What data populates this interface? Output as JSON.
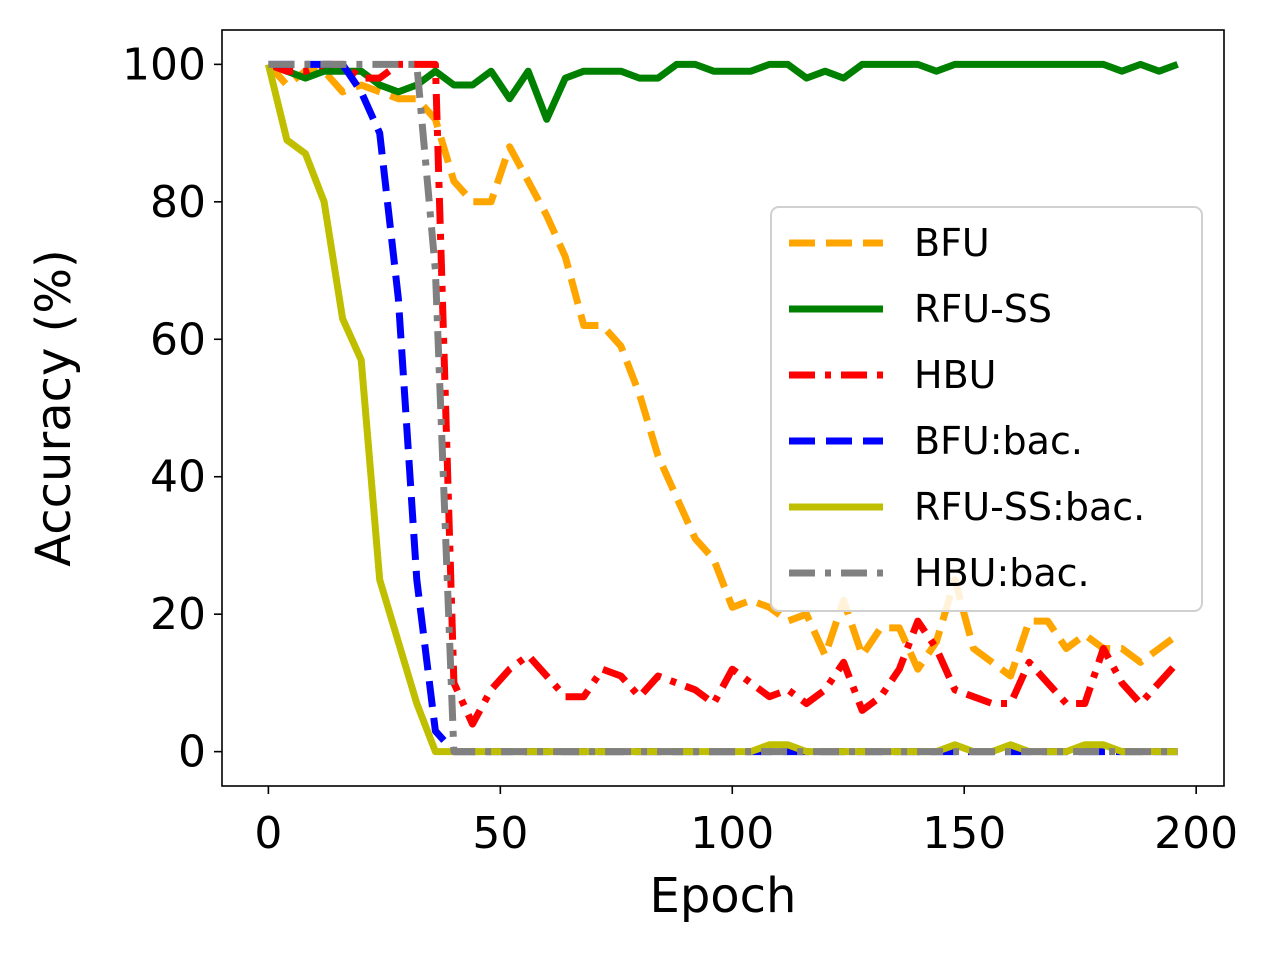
{
  "chart_data": {
    "type": "line",
    "title": "",
    "xlabel": "Epoch",
    "ylabel": "Accuracy (%)",
    "xlim": [
      -10,
      206
    ],
    "ylim": [
      -5,
      105
    ],
    "xticks": [
      0,
      50,
      100,
      150,
      200
    ],
    "yticks": [
      0,
      20,
      40,
      60,
      80,
      100
    ],
    "grid": false,
    "legend_position": "center-right",
    "x": [
      0,
      4,
      8,
      12,
      16,
      20,
      24,
      28,
      32,
      36,
      40,
      44,
      48,
      52,
      56,
      60,
      64,
      68,
      72,
      76,
      80,
      84,
      88,
      92,
      96,
      100,
      104,
      108,
      112,
      116,
      120,
      124,
      128,
      132,
      136,
      140,
      144,
      148,
      152,
      156,
      160,
      164,
      168,
      172,
      176,
      180,
      184,
      188,
      192,
      196
    ],
    "series": [
      {
        "name": "BFU",
        "color": "#ffa500",
        "dash": "dashed",
        "values": [
          100,
          97,
          99,
          99,
          96,
          97,
          96,
          95,
          95,
          92,
          83,
          80,
          80,
          88,
          83,
          78,
          72,
          62,
          62,
          59,
          52,
          43,
          37,
          31,
          28,
          21,
          22,
          21,
          19,
          20,
          14,
          22,
          14,
          18,
          18,
          12,
          16,
          25,
          15,
          13,
          11,
          19,
          19,
          15,
          17,
          15,
          15,
          13,
          15,
          17
        ]
      },
      {
        "name": "RFU-SS",
        "color": "#008000",
        "dash": "solid",
        "values": [
          100,
          99,
          98,
          99,
          99,
          99,
          97,
          96,
          97,
          99,
          97,
          97,
          99,
          95,
          99,
          92,
          98,
          99,
          99,
          99,
          98,
          98,
          100,
          100,
          99,
          99,
          99,
          100,
          100,
          98,
          99,
          98,
          100,
          100,
          100,
          100,
          99,
          100,
          100,
          100,
          100,
          100,
          100,
          100,
          100,
          100,
          99,
          100,
          99,
          100
        ]
      },
      {
        "name": "HBU",
        "color": "#ff0000",
        "dash": "dashdot",
        "values": [
          100,
          99,
          99,
          100,
          100,
          98,
          98,
          100,
          100,
          100,
          10,
          4,
          9,
          12,
          14,
          11,
          8,
          8,
          12,
          11,
          8,
          11,
          10,
          9,
          7,
          12,
          10,
          8,
          9,
          7,
          9,
          13,
          6,
          8,
          12,
          19,
          15,
          9,
          8,
          7,
          7,
          13,
          10,
          7,
          7,
          15,
          10,
          7,
          10,
          13
        ]
      },
      {
        "name": "BFU:bac.",
        "color": "#0000ff",
        "dash": "dashed",
        "values": [
          100,
          100,
          100,
          100,
          100,
          96,
          90,
          66,
          25,
          3,
          0,
          0,
          0,
          0,
          0,
          0,
          0,
          0,
          0,
          0,
          0,
          0,
          0,
          0,
          0,
          0,
          0,
          0,
          0,
          0,
          0,
          0,
          0,
          0,
          0,
          0,
          0,
          0,
          0,
          0,
          0,
          0,
          0,
          0,
          0,
          0,
          0,
          0,
          0,
          0
        ]
      },
      {
        "name": "RFU-SS:bac.",
        "color": "#bfbf00",
        "dash": "solid",
        "values": [
          100,
          89,
          87,
          80,
          63,
          57,
          25,
          16,
          7,
          0,
          0,
          0,
          0,
          0,
          0,
          0,
          0,
          0,
          0,
          0,
          0,
          0,
          0,
          0,
          0,
          0,
          0,
          1,
          1,
          0,
          0,
          0,
          0,
          0,
          0,
          0,
          0,
          1,
          0,
          0,
          1,
          0,
          0,
          0,
          1,
          1,
          0,
          0,
          0,
          0
        ]
      },
      {
        "name": "HBU:bac.",
        "color": "#808080",
        "dash": "dashdot",
        "values": [
          100,
          100,
          100,
          100,
          100,
          100,
          100,
          100,
          100,
          70,
          0,
          0,
          0,
          0,
          0,
          0,
          0,
          0,
          0,
          0,
          0,
          0,
          0,
          0,
          0,
          0,
          0,
          0,
          0,
          0,
          0,
          0,
          0,
          0,
          0,
          0,
          0,
          0,
          0,
          0,
          0,
          0,
          0,
          0,
          0,
          0,
          0,
          0,
          0,
          0
        ]
      }
    ]
  }
}
